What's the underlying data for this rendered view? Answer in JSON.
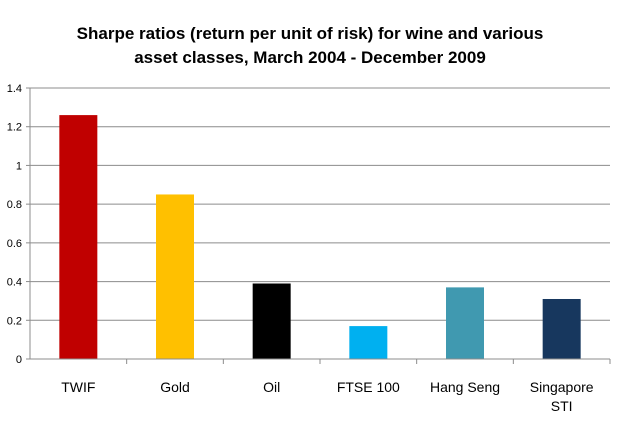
{
  "chart_data": {
    "type": "bar",
    "title_lines": [
      "Sharpe ratios (return per unit of risk) for wine and various",
      "asset classes, March 2004 - December 2009"
    ],
    "categories": [
      "TWIF",
      "Gold",
      "Oil",
      "FTSE 100",
      "Hang Seng",
      "Singapore STI"
    ],
    "category_label_lines": [
      [
        "TWIF"
      ],
      [
        "Gold"
      ],
      [
        "Oil"
      ],
      [
        "FTSE 100"
      ],
      [
        "Hang Seng"
      ],
      [
        "Singapore",
        "STI"
      ]
    ],
    "values": [
      1.26,
      0.85,
      0.39,
      0.17,
      0.37,
      0.31
    ],
    "colors": [
      "#c00000",
      "#ffc000",
      "#000000",
      "#00b0f0",
      "#4099b0",
      "#17375e"
    ],
    "xlabel": "",
    "ylabel": "",
    "ylim": [
      0,
      1.4
    ],
    "yticks": [
      0,
      0.2,
      0.4,
      0.6,
      0.8,
      1,
      1.2,
      1.4
    ],
    "ytick_labels": [
      "0",
      "0.2",
      "0.4",
      "0.6",
      "0.8",
      "1",
      "1.2",
      "1.4"
    ],
    "grid": true,
    "legend": "none"
  }
}
